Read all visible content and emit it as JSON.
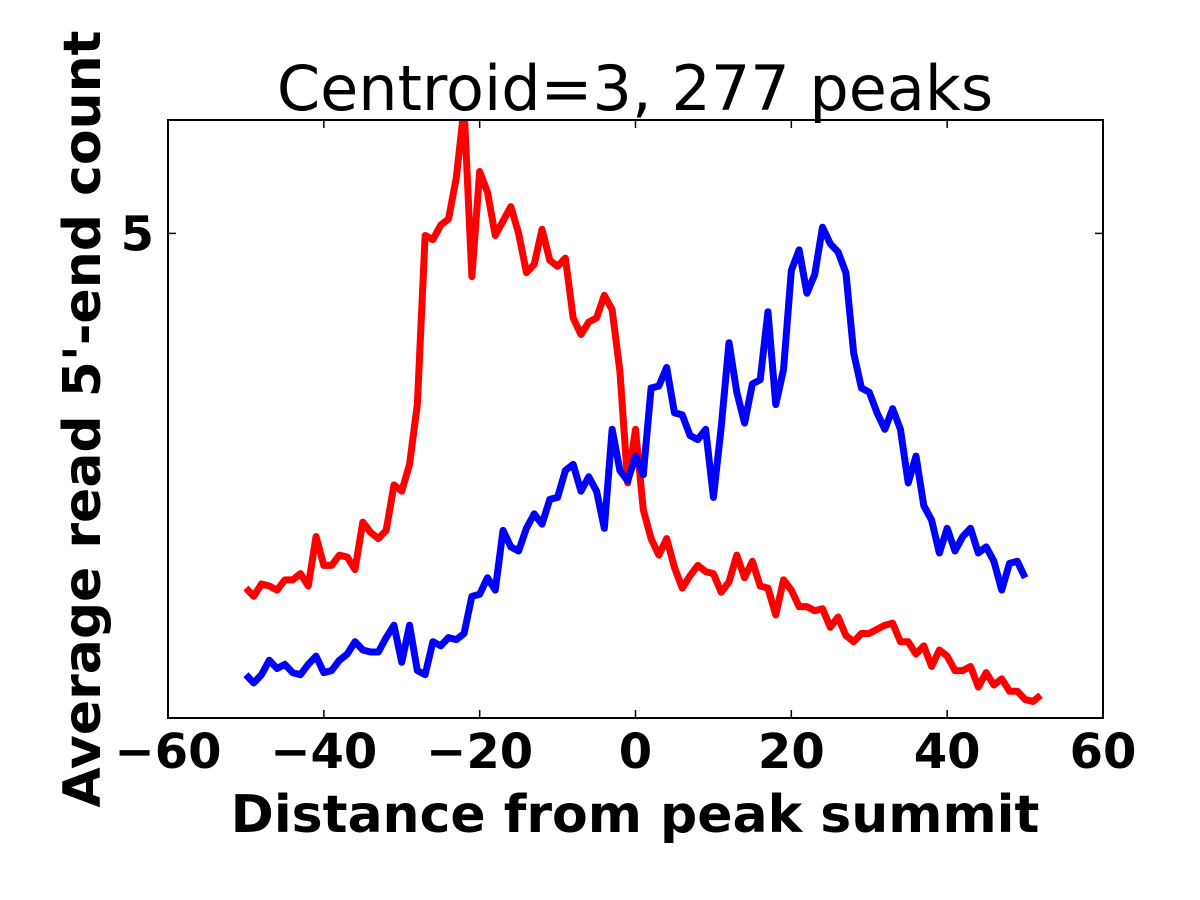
{
  "chart_data": {
    "type": "line",
    "title": "Centroid=3, 277 peaks",
    "xlabel": "Distance from peak summit",
    "ylabel": "Average read 5'-end count",
    "xlim": [
      -60,
      60
    ],
    "ylim": [
      2.65,
      5.55
    ],
    "x_ticks": [
      -60,
      -40,
      -20,
      0,
      20,
      40,
      60
    ],
    "x_tick_labels": [
      "−60",
      "−40",
      "−20",
      "0",
      "20",
      "40",
      "60"
    ],
    "y_ticks": [
      5
    ],
    "y_tick_labels": [
      "5"
    ],
    "grid": false,
    "legend": "none",
    "x_start": -50,
    "x_step": 1,
    "series": [
      {
        "color": "#ff0000",
        "values": [
          3.28,
          3.24,
          3.3,
          3.29,
          3.27,
          3.32,
          3.32,
          3.35,
          3.29,
          3.53,
          3.39,
          3.39,
          3.44,
          3.43,
          3.37,
          3.6,
          3.55,
          3.52,
          3.56,
          3.78,
          3.75,
          3.88,
          4.17,
          4.99,
          4.97,
          5.04,
          5.07,
          5.27,
          5.61,
          4.79,
          5.3,
          5.2,
          4.99,
          5.06,
          5.13,
          5.0,
          4.81,
          4.85,
          5.02,
          4.87,
          4.84,
          4.88,
          4.59,
          4.51,
          4.57,
          4.59,
          4.7,
          4.63,
          4.33,
          3.79,
          4.05,
          3.66,
          3.52,
          3.44,
          3.52,
          3.38,
          3.28,
          3.34,
          3.39,
          3.36,
          3.35,
          3.26,
          3.31,
          3.44,
          3.33,
          3.41,
          3.29,
          3.28,
          3.15,
          3.32,
          3.27,
          3.19,
          3.19,
          3.17,
          3.18,
          3.09,
          3.14,
          3.05,
          3.02,
          3.06,
          3.06,
          3.08,
          3.1,
          3.11,
          3.02,
          3.02,
          2.96,
          3.0,
          2.9,
          2.98,
          2.95,
          2.88,
          2.88,
          2.9,
          2.8,
          2.87,
          2.81,
          2.84,
          2.78,
          2.78,
          2.74,
          2.73,
          2.76
        ]
      },
      {
        "color": "#0000ff",
        "values": [
          2.86,
          2.82,
          2.86,
          2.93,
          2.89,
          2.91,
          2.87,
          2.86,
          2.91,
          2.95,
          2.87,
          2.88,
          2.93,
          2.96,
          3.02,
          2.98,
          2.97,
          2.97,
          3.04,
          3.1,
          2.92,
          3.1,
          2.88,
          2.86,
          3.02,
          3.0,
          3.04,
          3.03,
          3.06,
          3.24,
          3.25,
          3.33,
          3.27,
          3.56,
          3.48,
          3.46,
          3.57,
          3.64,
          3.59,
          3.71,
          3.72,
          3.85,
          3.88,
          3.75,
          3.82,
          3.75,
          3.57,
          4.05,
          3.85,
          3.8,
          3.92,
          3.83,
          4.25,
          4.26,
          4.35,
          4.13,
          4.12,
          4.02,
          4.0,
          4.05,
          3.72,
          4.06,
          4.47,
          4.23,
          4.08,
          4.27,
          4.29,
          4.62,
          4.17,
          4.34,
          4.82,
          4.92,
          4.71,
          4.8,
          5.03,
          4.95,
          4.91,
          4.81,
          4.42,
          4.25,
          4.23,
          4.13,
          4.05,
          4.15,
          4.05,
          3.79,
          3.92,
          3.68,
          3.61,
          3.45,
          3.57,
          3.46,
          3.53,
          3.57,
          3.45,
          3.48,
          3.41,
          3.27,
          3.4,
          3.41,
          3.33
        ]
      }
    ]
  }
}
